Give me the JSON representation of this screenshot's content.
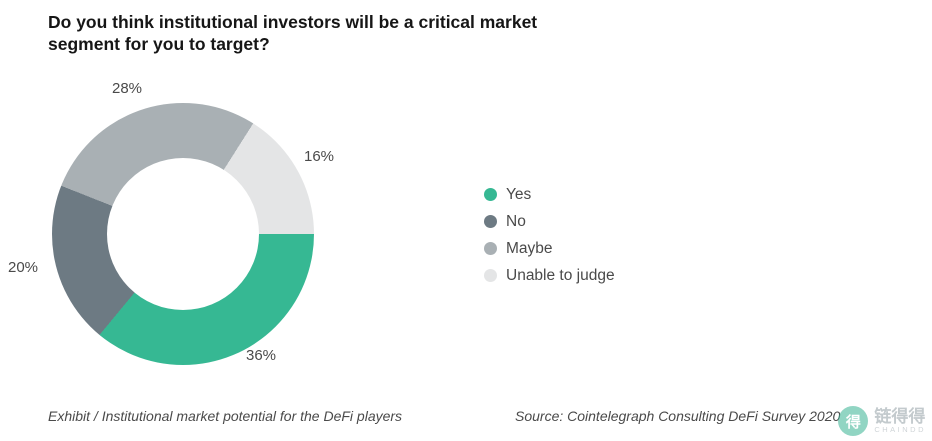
{
  "title": "Do you think institutional investors will be a critical market segment for you to target?",
  "chart_data": {
    "type": "pie",
    "subtype": "donut",
    "title": "Do you think institutional investors will be a critical market segment for you to target?",
    "labels": [
      "Yes",
      "No",
      "Maybe",
      "Unable to judge"
    ],
    "values": [
      36,
      20,
      28,
      16
    ],
    "value_labels": [
      "36%",
      "20%",
      "28%",
      "16%"
    ],
    "colors": [
      "#36b893",
      "#6d7a83",
      "#a9b0b4",
      "#e4e5e6"
    ],
    "start_angle_deg_clockwise_from_top": 90,
    "legend_position": "right",
    "hole_ratio": 0.58
  },
  "footer": {
    "exhibit": "Exhibit / Institutional market potential for the DeFi players",
    "source": "Source: Cointelegraph Consulting DeFi Survey 2020"
  },
  "watermark": {
    "name_cn": "链得得",
    "name_en": "CHAINDD",
    "glyph": "得"
  }
}
